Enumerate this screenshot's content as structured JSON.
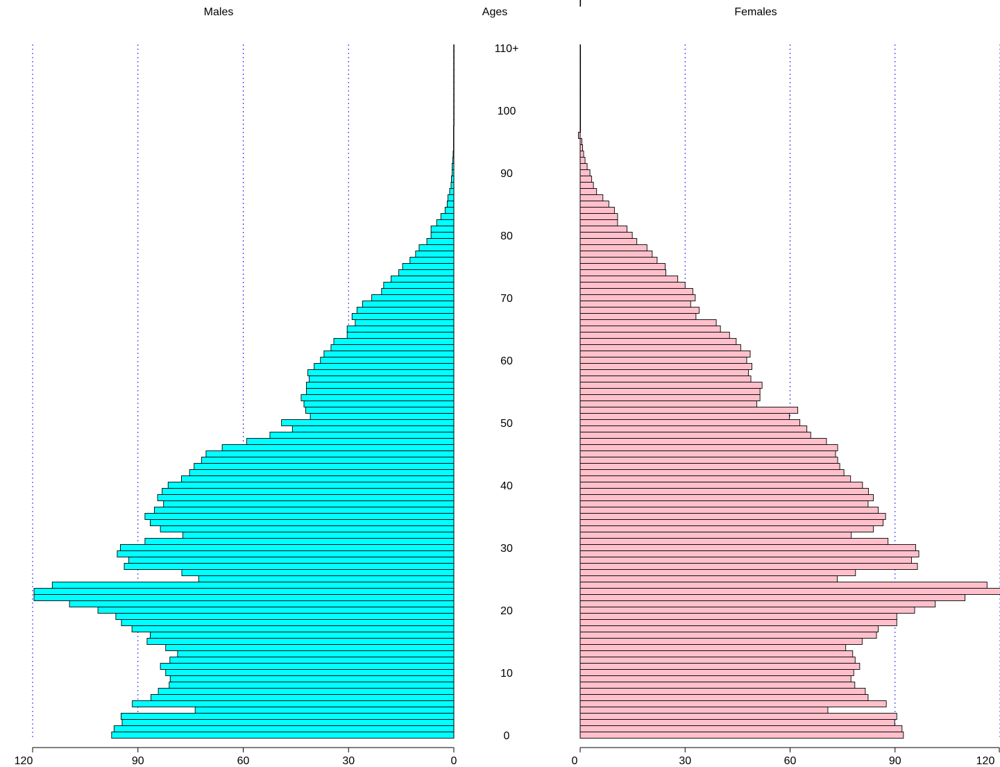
{
  "chart_data": {
    "type": "bar",
    "orientation": "horizontal",
    "layout": "population-pyramid",
    "titles": {
      "left": "Males",
      "center": "Ages",
      "right": "Females"
    },
    "age_ticks": [
      "0",
      "10",
      "20",
      "30",
      "40",
      "50",
      "60",
      "70",
      "80",
      "90",
      "100",
      "110+"
    ],
    "x_ticks": [
      "0",
      "30",
      "60",
      "90",
      "120"
    ],
    "xlim": [
      0,
      120
    ],
    "ages": [
      0,
      1,
      2,
      3,
      4,
      5,
      6,
      7,
      8,
      9,
      10,
      11,
      12,
      13,
      14,
      15,
      16,
      17,
      18,
      19,
      20,
      21,
      22,
      23,
      24,
      25,
      26,
      27,
      28,
      29,
      30,
      31,
      32,
      33,
      34,
      35,
      36,
      37,
      38,
      39,
      40,
      41,
      42,
      43,
      44,
      45,
      46,
      47,
      48,
      49,
      50,
      51,
      52,
      53,
      54,
      55,
      56,
      57,
      58,
      59,
      60,
      61,
      62,
      63,
      64,
      65,
      66,
      67,
      68,
      69,
      70,
      71,
      72,
      73,
      74,
      75,
      76,
      77,
      78,
      79,
      80,
      81,
      82,
      83,
      84,
      85,
      86,
      87,
      88,
      89,
      90,
      91,
      92,
      93,
      94,
      95,
      96,
      97,
      98,
      99,
      100,
      101,
      102,
      103,
      104,
      105,
      106,
      107,
      108,
      109,
      110
    ],
    "grid": "vertical dotted at 30, 60, 90, 120",
    "series": [
      {
        "name": "Males",
        "color": "#00ffff",
        "values": [
          97.5,
          96.8,
          94.5,
          94.8,
          73.7,
          91.6,
          86.3,
          84.2,
          81.1,
          80.8,
          82.1,
          83.6,
          80.9,
          78.7,
          82.1,
          87.4,
          86.5,
          91.7,
          94.7,
          96.3,
          101.4,
          109.5,
          119.6,
          119.6,
          114.4,
          72.7,
          77.5,
          93.9,
          92.6,
          95.9,
          95.0,
          88.0,
          77.2,
          83.6,
          86.5,
          88.0,
          85.3,
          82.7,
          84.4,
          83.1,
          81.4,
          77.6,
          75.3,
          74.0,
          71.9,
          70.6,
          66.0,
          59.0,
          52.4,
          46.0,
          49.1,
          40.9,
          42.2,
          42.7,
          43.5,
          42.0,
          42.0,
          41.2,
          41.6,
          39.8,
          38.0,
          37.0,
          35.0,
          34.2,
          30.4,
          30.4,
          28.1,
          29.0,
          27.6,
          26.0,
          23.4,
          20.6,
          20.0,
          17.9,
          15.7,
          14.6,
          12.5,
          10.9,
          9.9,
          7.7,
          6.5,
          6.5,
          4.9,
          3.7,
          2.5,
          1.9,
          1.7,
          1.2,
          0.8,
          0.7,
          0.5,
          0.5,
          0.3,
          0.2,
          0.1,
          0.1,
          0.1,
          0.1,
          0.05,
          0.05,
          0.05,
          0.05,
          0.05,
          0.05,
          0.05,
          0.05,
          0.05,
          0.05,
          0.05,
          0.05,
          0.05
        ]
      },
      {
        "name": "Females",
        "color": "#ffc0cb",
        "values": [
          92.4,
          92.0,
          89.9,
          90.5,
          70.8,
          87.5,
          82.3,
          81.5,
          78.5,
          77.4,
          78.2,
          79.9,
          78.6,
          77.9,
          75.9,
          80.6,
          84.7,
          85.2,
          90.5,
          90.5,
          95.6,
          101.5,
          110.0,
          121.5,
          116.3,
          73.5,
          78.7,
          96.4,
          94.7,
          96.8,
          95.9,
          88.0,
          77.5,
          83.8,
          86.6,
          87.3,
          85.2,
          82.3,
          83.8,
          82.4,
          80.7,
          77.3,
          75.4,
          74.2,
          73.6,
          73.0,
          73.6,
          70.4,
          65.9,
          64.8,
          62.8,
          59.8,
          62.2,
          50.5,
          51.4,
          51.4,
          52.0,
          48.8,
          48.1,
          49.1,
          47.6,
          48.6,
          45.9,
          44.6,
          42.7,
          40.1,
          38.9,
          33.1,
          34.0,
          31.6,
          32.9,
          32.2,
          30.0,
          27.9,
          24.5,
          24.3,
          22.0,
          20.6,
          19.1,
          16.2,
          14.9,
          13.4,
          10.7,
          10.7,
          9.8,
          8.2,
          6.5,
          4.7,
          3.8,
          3.3,
          2.8,
          2.0,
          1.4,
          1.0,
          0.7,
          0.5,
          -0.5,
          0.1,
          0.1,
          0.1,
          0.05,
          0.05,
          0.05,
          0.05,
          0.05,
          0.05,
          0.05,
          0.05,
          0.05,
          0.05,
          0.05,
          0.05,
          0.05
        ]
      }
    ]
  }
}
